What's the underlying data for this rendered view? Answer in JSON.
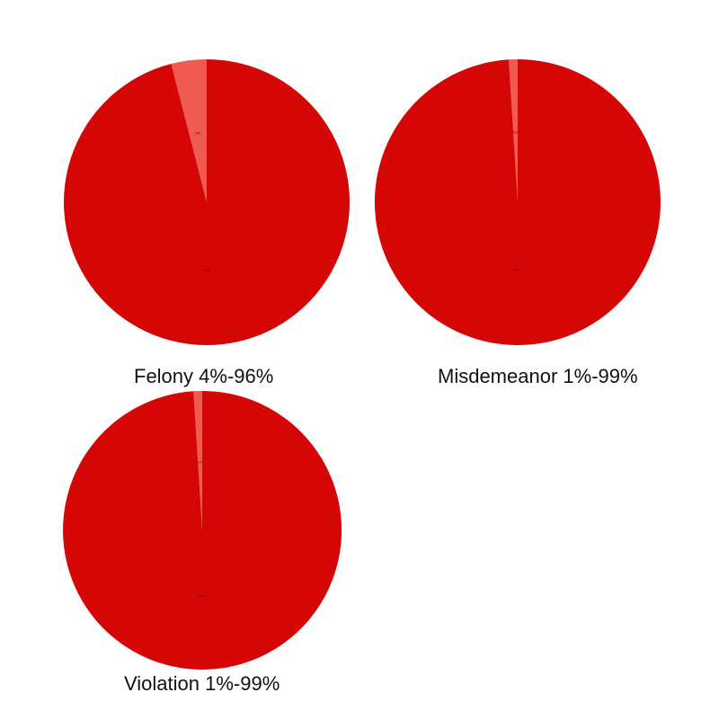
{
  "colors": {
    "major_slice": "#d50606",
    "minor_slice": "#f05a50",
    "background": "#ffffff",
    "caption_text": "#111111"
  },
  "chart_data": [
    {
      "type": "pie",
      "title": "Felony 4%-96%",
      "slices": [
        {
          "label": "4%",
          "value": 4
        },
        {
          "label": "96%",
          "value": 96
        }
      ]
    },
    {
      "type": "pie",
      "title": "Misdemeanor 1%-99%",
      "slices": [
        {
          "label": "1%",
          "value": 1
        },
        {
          "label": "99%",
          "value": 99
        }
      ]
    },
    {
      "type": "pie",
      "title": "Violation 1%-99%",
      "slices": [
        {
          "label": "1%",
          "value": 1
        },
        {
          "label": "99%",
          "value": 99
        }
      ]
    }
  ]
}
